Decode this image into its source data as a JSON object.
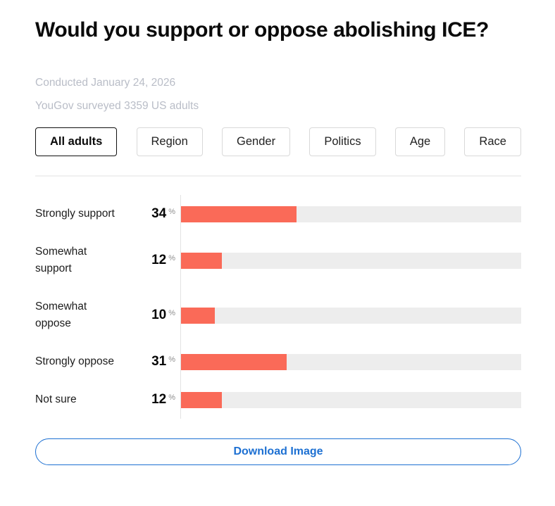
{
  "header": {
    "title": "Would you support or oppose abolishing ICE?",
    "conducted": "Conducted January 24, 2026",
    "surveyed": "YouGov surveyed 3359 US adults"
  },
  "tabs": [
    {
      "label": "All adults",
      "selected": true
    },
    {
      "label": "Region",
      "selected": false
    },
    {
      "label": "Gender",
      "selected": false
    },
    {
      "label": "Politics",
      "selected": false
    },
    {
      "label": "Age",
      "selected": false
    },
    {
      "label": "Race",
      "selected": false
    }
  ],
  "chart_data": {
    "type": "bar",
    "orientation": "horizontal",
    "title": "Would you support or oppose abolishing ICE?",
    "categories": [
      "Strongly support",
      "Somewhat support",
      "Somewhat oppose",
      "Strongly oppose",
      "Not sure"
    ],
    "categories_display": [
      "Strongly support",
      "Somewhat\nsupport",
      "Somewhat\noppose",
      "Strongly oppose",
      "Not sure"
    ],
    "values": [
      34,
      12,
      10,
      31,
      12
    ],
    "unit": "%",
    "xlim": [
      0,
      100
    ],
    "grid": false,
    "legend": false
  },
  "footer": {
    "download_label": "Download Image"
  },
  "colors": {
    "bar": "#fa6a58",
    "track": "#ededed",
    "axis": "#e2e2e2",
    "accent_blue": "#1d70d2",
    "subtitle_gray": "#b9bdc7",
    "selected_tab_border": "#111111",
    "tab_border": "#d9d9d9",
    "divider": "#f0f0f0",
    "unit_gray": "#8e8e8e",
    "text": "#111111"
  }
}
